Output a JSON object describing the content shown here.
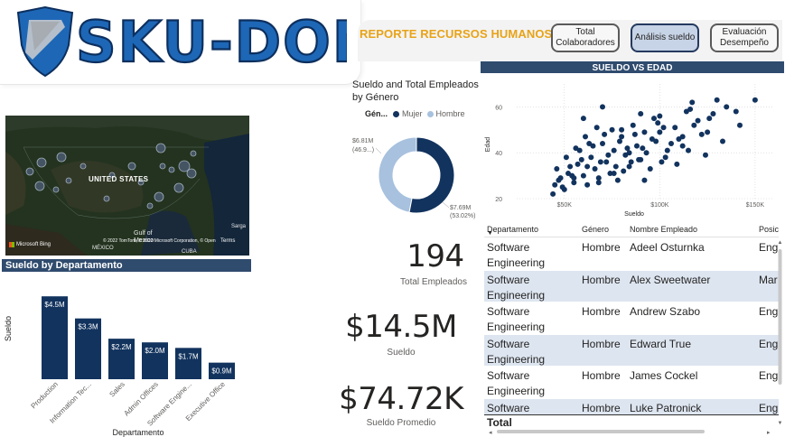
{
  "brand": {
    "logo_text": "SKU-DON"
  },
  "header": {
    "report_title": "REPORTE RECURSOS HUMANOS",
    "nav": [
      {
        "line1": "Total",
        "line2": "Colaboradores"
      },
      {
        "line1": "Análisis sueldo",
        "line2": ""
      },
      {
        "line1": "Evaluación",
        "line2": "Desempeño"
      }
    ]
  },
  "map": {
    "country_label": "UNITED STATES",
    "gulf_label_1": "Gulf of",
    "gulf_label_2": "Mexico",
    "mexico_label": "MÉXICO",
    "cuba_label": "CUBA",
    "sargasso_label": "Sarga",
    "credit": "© 2022 TomTom, © 2022 Microsoft Corporation, © OpenStreetMap",
    "terms": "Terms",
    "bing": "Microsoft Bing"
  },
  "dept_chart": {
    "section_title": "Sueldo by Departamento",
    "chart_data": {
      "type": "bar",
      "categories": [
        "Production",
        "Information Tec...",
        "Sales",
        "Admin Offices",
        "Software Engine...",
        "Executive Office"
      ],
      "values": [
        4.5,
        3.3,
        2.2,
        2.0,
        1.7,
        0.9
      ],
      "labels": [
        "$4.5M",
        "$3.3M",
        "$2.2M",
        "$2.0M",
        "$1.7M",
        "$0.9M"
      ],
      "xlabel": "Departamento",
      "ylabel": "Sueldo",
      "color": "#12335e"
    }
  },
  "gender_chart": {
    "title": "Sueldo and Total Empleados by Género",
    "legend_title": "Gén...",
    "legend": [
      {
        "name": "Mujer",
        "color": "#12335e"
      },
      {
        "name": "Hombre",
        "color": "#a7c1de"
      }
    ],
    "chart_data": {
      "type": "pie",
      "slices": [
        {
          "name": "Hombre",
          "value": 6.81,
          "label": "$6.81M",
          "pct": "(46.9...)"
        },
        {
          "name": "Mujer",
          "value": 7.69,
          "label": "$7.69M",
          "pct": "(53.02%)"
        }
      ]
    }
  },
  "kpis": [
    {
      "value": "194",
      "label": "Total Empleados"
    },
    {
      "value": "$14.5M",
      "label": "Sueldo"
    },
    {
      "value": "$74.72K",
      "label": "Sueldo Promedio"
    }
  ],
  "scatter": {
    "section_title": "SUELDO VS EDAD",
    "chart_data": {
      "type": "scatter",
      "xlabel": "Sueldo",
      "ylabel": "Edad",
      "x_ticks": [
        "$50K",
        "$100K",
        "$150K"
      ],
      "y_ticks": [
        "20",
        "40",
        "60"
      ],
      "xlim": [
        25000,
        160000
      ],
      "ylim": [
        20,
        70
      ],
      "color": "#12335e",
      "x": [
        45000,
        48000,
        50000,
        52000,
        55000,
        57000,
        60000,
        62000,
        64000,
        66000,
        68000,
        70000,
        72000,
        74000,
        76000,
        78000,
        80000,
        82000,
        84000,
        86000,
        88000,
        90000,
        92000,
        95000,
        98000,
        100000,
        104000,
        108000,
        112000,
        116000,
        120000,
        125000,
        130000,
        46000,
        51000,
        56000,
        61000,
        67000,
        73000,
        79000,
        85000,
        91000,
        97000,
        103000,
        110000,
        118000,
        128000,
        47000,
        53000,
        58000,
        63000,
        69000,
        75000,
        81000,
        87000,
        93000,
        99000,
        106000,
        114000,
        122000,
        54000,
        59000,
        65000,
        71000,
        77000,
        83000,
        89000,
        96000,
        102000,
        109000,
        117000,
        126000,
        135000,
        142000,
        140000,
        150000,
        44000,
        49000,
        55000,
        62000,
        68000,
        76000,
        84000,
        92000,
        101000,
        112000,
        124000,
        133000,
        60000,
        70000,
        80000,
        90000,
        100000,
        115000
      ],
      "y": [
        26,
        29,
        24,
        31,
        27,
        35,
        30,
        26,
        38,
        33,
        29,
        44,
        36,
        31,
        41,
        28,
        47,
        39,
        34,
        52,
        43,
        37,
        49,
        33,
        45,
        56,
        41,
        51,
        47,
        59,
        54,
        49,
        63,
        33,
        38,
        42,
        47,
        51,
        39,
        45,
        36,
        42,
        55,
        38,
        46,
        52,
        57,
        28,
        34,
        41,
        44,
        36,
        50,
        32,
        48,
        40,
        53,
        44,
        58,
        48,
        30,
        37,
        43,
        48,
        34,
        42,
        37,
        46,
        51,
        35,
        62,
        55,
        60,
        52,
        58,
        63,
        22,
        25,
        29,
        34,
        27,
        31,
        40,
        28,
        36,
        43,
        39,
        45,
        55,
        60,
        50,
        57,
        49,
        41
      ]
    }
  },
  "table": {
    "columns": [
      "Departamento",
      "Género",
      "Nombre Empleado",
      "Posic"
    ],
    "rows": [
      {
        "dept1": "Software",
        "dept2": "Engineering",
        "genero": "Hombre",
        "nombre": "Adeel Osturnka",
        "pos": "Eng"
      },
      {
        "dept1": "Software",
        "dept2": "Engineering",
        "genero": "Hombre",
        "nombre": "Alex Sweetwater",
        "pos": "Mar"
      },
      {
        "dept1": "Software",
        "dept2": "Engineering",
        "genero": "Hombre",
        "nombre": "Andrew Szabo",
        "pos": "Eng"
      },
      {
        "dept1": "Software",
        "dept2": "Engineering",
        "genero": "Hombre",
        "nombre": "Edward True",
        "pos": "Eng"
      },
      {
        "dept1": "Software",
        "dept2": "Engineering",
        "genero": "Hombre",
        "nombre": "James Cockel",
        "pos": "Eng"
      },
      {
        "dept1": "Software",
        "dept2": "Engineering",
        "genero": "Hombre",
        "nombre": "Luke Patronick",
        "pos": "Eng"
      }
    ],
    "total_label": "Total"
  }
}
